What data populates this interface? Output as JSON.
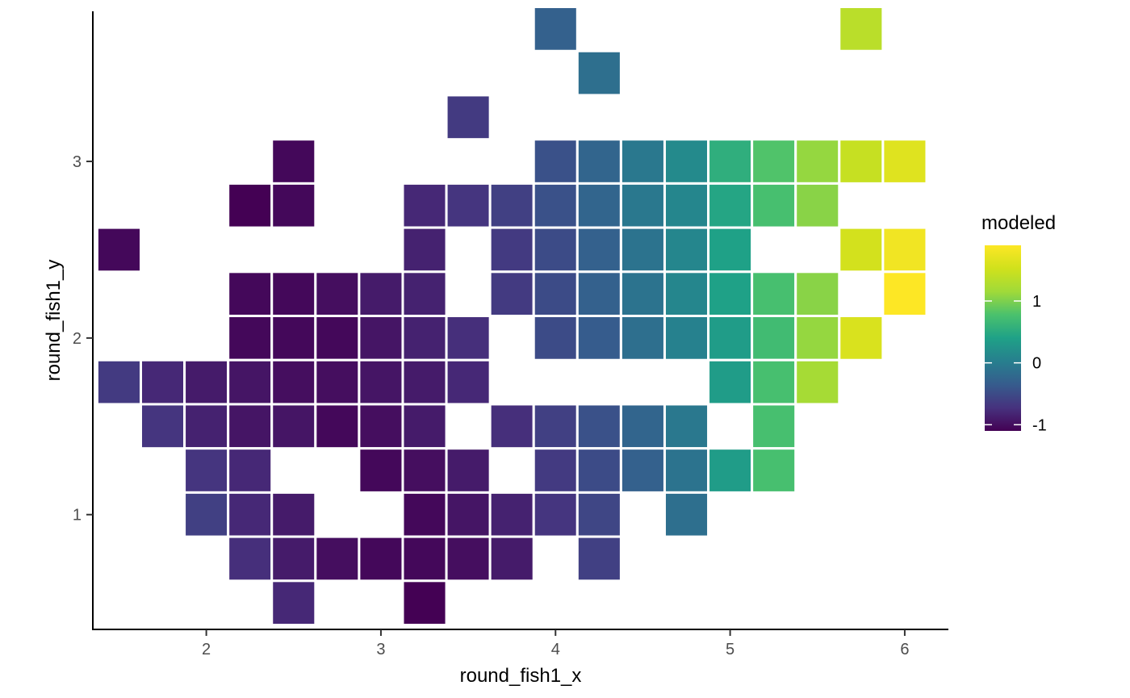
{
  "chart_data": {
    "type": "heatmap",
    "title": "",
    "xlabel": "round_fish1_x",
    "ylabel": "round_fish1_y",
    "xlim": [
      1.35,
      6.25
    ],
    "ylim": [
      0.35,
      3.85
    ],
    "x_ticks": [
      2,
      3,
      4,
      5,
      6
    ],
    "y_ticks": [
      1,
      2,
      3
    ],
    "grid": false,
    "tile_width": 0.25,
    "tile_height": 0.25,
    "legend": {
      "title": "modeled",
      "position": "right",
      "min": -1.1,
      "max": 1.9,
      "ticks": [
        -1,
        0,
        1
      ]
    },
    "color_scale": "viridis",
    "tiles": [
      {
        "x": 4.0,
        "y": 3.75,
        "value": -0.3
      },
      {
        "x": 5.75,
        "y": 3.75,
        "value": 1.35
      },
      {
        "x": 4.25,
        "y": 3.5,
        "value": -0.15
      },
      {
        "x": 3.5,
        "y": 3.25,
        "value": -0.65
      },
      {
        "x": 2.5,
        "y": 3.0,
        "value": -1.05
      },
      {
        "x": 4.0,
        "y": 3.0,
        "value": -0.45
      },
      {
        "x": 4.25,
        "y": 3.0,
        "value": -0.25
      },
      {
        "x": 4.5,
        "y": 3.0,
        "value": -0.05
      },
      {
        "x": 4.75,
        "y": 3.0,
        "value": 0.15
      },
      {
        "x": 5.0,
        "y": 3.0,
        "value": 0.55
      },
      {
        "x": 5.25,
        "y": 3.0,
        "value": 0.8
      },
      {
        "x": 5.5,
        "y": 3.0,
        "value": 1.1
      },
      {
        "x": 5.75,
        "y": 3.0,
        "value": 1.45
      },
      {
        "x": 6.0,
        "y": 3.0,
        "value": 1.65
      },
      {
        "x": 2.25,
        "y": 2.75,
        "value": -1.1
      },
      {
        "x": 2.5,
        "y": 2.75,
        "value": -1.05
      },
      {
        "x": 3.25,
        "y": 2.75,
        "value": -0.8
      },
      {
        "x": 3.5,
        "y": 2.75,
        "value": -0.7
      },
      {
        "x": 3.75,
        "y": 2.75,
        "value": -0.6
      },
      {
        "x": 4.0,
        "y": 2.75,
        "value": -0.45
      },
      {
        "x": 4.25,
        "y": 2.75,
        "value": -0.25
      },
      {
        "x": 4.5,
        "y": 2.75,
        "value": -0.05
      },
      {
        "x": 4.75,
        "y": 2.75,
        "value": 0.1
      },
      {
        "x": 5.0,
        "y": 2.75,
        "value": 0.45
      },
      {
        "x": 5.25,
        "y": 2.75,
        "value": 0.75
      },
      {
        "x": 5.5,
        "y": 2.75,
        "value": 1.05
      },
      {
        "x": 1.5,
        "y": 2.5,
        "value": -1.05
      },
      {
        "x": 3.25,
        "y": 2.5,
        "value": -0.85
      },
      {
        "x": 3.75,
        "y": 2.5,
        "value": -0.65
      },
      {
        "x": 4.0,
        "y": 2.5,
        "value": -0.5
      },
      {
        "x": 4.25,
        "y": 2.5,
        "value": -0.3
      },
      {
        "x": 4.5,
        "y": 2.5,
        "value": -0.1
      },
      {
        "x": 4.75,
        "y": 2.5,
        "value": 0.1
      },
      {
        "x": 5.0,
        "y": 2.5,
        "value": 0.4
      },
      {
        "x": 5.75,
        "y": 2.5,
        "value": 1.55
      },
      {
        "x": 6.0,
        "y": 2.5,
        "value": 1.8
      },
      {
        "x": 2.25,
        "y": 2.25,
        "value": -1.05
      },
      {
        "x": 2.5,
        "y": 2.25,
        "value": -1.05
      },
      {
        "x": 2.75,
        "y": 2.25,
        "value": -1.0
      },
      {
        "x": 3.0,
        "y": 2.25,
        "value": -0.9
      },
      {
        "x": 3.25,
        "y": 2.25,
        "value": -0.85
      },
      {
        "x": 3.75,
        "y": 2.25,
        "value": -0.65
      },
      {
        "x": 4.0,
        "y": 2.25,
        "value": -0.5
      },
      {
        "x": 4.25,
        "y": 2.25,
        "value": -0.3
      },
      {
        "x": 4.5,
        "y": 2.25,
        "value": -0.1
      },
      {
        "x": 4.75,
        "y": 2.25,
        "value": 0.1
      },
      {
        "x": 5.0,
        "y": 2.25,
        "value": 0.4
      },
      {
        "x": 5.25,
        "y": 2.25,
        "value": 0.75
      },
      {
        "x": 5.5,
        "y": 2.25,
        "value": 1.05
      },
      {
        "x": 6.0,
        "y": 2.25,
        "value": 1.9
      },
      {
        "x": 2.25,
        "y": 2.0,
        "value": -1.05
      },
      {
        "x": 2.5,
        "y": 2.0,
        "value": -1.05
      },
      {
        "x": 2.75,
        "y": 2.0,
        "value": -1.05
      },
      {
        "x": 3.0,
        "y": 2.0,
        "value": -0.95
      },
      {
        "x": 3.25,
        "y": 2.0,
        "value": -0.85
      },
      {
        "x": 3.5,
        "y": 2.0,
        "value": -0.75
      },
      {
        "x": 4.0,
        "y": 2.0,
        "value": -0.5
      },
      {
        "x": 4.25,
        "y": 2.0,
        "value": -0.35
      },
      {
        "x": 4.5,
        "y": 2.0,
        "value": -0.15
      },
      {
        "x": 4.75,
        "y": 2.0,
        "value": 0.05
      },
      {
        "x": 5.0,
        "y": 2.0,
        "value": 0.35
      },
      {
        "x": 5.25,
        "y": 2.0,
        "value": 0.7
      },
      {
        "x": 5.5,
        "y": 2.0,
        "value": 1.1
      },
      {
        "x": 5.75,
        "y": 2.0,
        "value": 1.6
      },
      {
        "x": 1.5,
        "y": 1.75,
        "value": -0.65
      },
      {
        "x": 1.75,
        "y": 1.75,
        "value": -0.8
      },
      {
        "x": 2.0,
        "y": 1.75,
        "value": -0.9
      },
      {
        "x": 2.25,
        "y": 1.75,
        "value": -0.95
      },
      {
        "x": 2.5,
        "y": 1.75,
        "value": -1.0
      },
      {
        "x": 2.75,
        "y": 1.75,
        "value": -1.0
      },
      {
        "x": 3.0,
        "y": 1.75,
        "value": -0.95
      },
      {
        "x": 3.25,
        "y": 1.75,
        "value": -0.9
      },
      {
        "x": 3.5,
        "y": 1.75,
        "value": -0.8
      },
      {
        "x": 5.0,
        "y": 1.75,
        "value": 0.35
      },
      {
        "x": 5.25,
        "y": 1.75,
        "value": 0.75
      },
      {
        "x": 5.5,
        "y": 1.75,
        "value": 1.2
      },
      {
        "x": 1.75,
        "y": 1.5,
        "value": -0.7
      },
      {
        "x": 2.0,
        "y": 1.5,
        "value": -0.85
      },
      {
        "x": 2.25,
        "y": 1.5,
        "value": -0.95
      },
      {
        "x": 2.5,
        "y": 1.5,
        "value": -0.95
      },
      {
        "x": 2.75,
        "y": 1.5,
        "value": -1.05
      },
      {
        "x": 3.0,
        "y": 1.5,
        "value": -1.0
      },
      {
        "x": 3.25,
        "y": 1.5,
        "value": -0.9
      },
      {
        "x": 3.75,
        "y": 1.5,
        "value": -0.75
      },
      {
        "x": 4.0,
        "y": 1.5,
        "value": -0.6
      },
      {
        "x": 4.25,
        "y": 1.5,
        "value": -0.45
      },
      {
        "x": 4.5,
        "y": 1.5,
        "value": -0.25
      },
      {
        "x": 4.75,
        "y": 1.5,
        "value": -0.05
      },
      {
        "x": 5.25,
        "y": 1.5,
        "value": 0.75
      },
      {
        "x": 2.0,
        "y": 1.25,
        "value": -0.7
      },
      {
        "x": 2.25,
        "y": 1.25,
        "value": -0.8
      },
      {
        "x": 3.0,
        "y": 1.25,
        "value": -1.05
      },
      {
        "x": 3.25,
        "y": 1.25,
        "value": -1.0
      },
      {
        "x": 3.5,
        "y": 1.25,
        "value": -0.9
      },
      {
        "x": 4.0,
        "y": 1.25,
        "value": -0.65
      },
      {
        "x": 4.25,
        "y": 1.25,
        "value": -0.5
      },
      {
        "x": 4.5,
        "y": 1.25,
        "value": -0.3
      },
      {
        "x": 4.75,
        "y": 1.25,
        "value": -0.1
      },
      {
        "x": 5.0,
        "y": 1.25,
        "value": 0.35
      },
      {
        "x": 5.25,
        "y": 1.25,
        "value": 0.75
      },
      {
        "x": 2.0,
        "y": 1.0,
        "value": -0.6
      },
      {
        "x": 2.25,
        "y": 1.0,
        "value": -0.8
      },
      {
        "x": 2.5,
        "y": 1.0,
        "value": -0.9
      },
      {
        "x": 3.25,
        "y": 1.0,
        "value": -1.05
      },
      {
        "x": 3.5,
        "y": 1.0,
        "value": -0.95
      },
      {
        "x": 3.75,
        "y": 1.0,
        "value": -0.85
      },
      {
        "x": 4.0,
        "y": 1.0,
        "value": -0.7
      },
      {
        "x": 4.25,
        "y": 1.0,
        "value": -0.55
      },
      {
        "x": 4.75,
        "y": 1.0,
        "value": -0.15
      },
      {
        "x": 2.25,
        "y": 0.75,
        "value": -0.75
      },
      {
        "x": 2.5,
        "y": 0.75,
        "value": -0.9
      },
      {
        "x": 2.75,
        "y": 0.75,
        "value": -1.0
      },
      {
        "x": 3.0,
        "y": 0.75,
        "value": -1.05
      },
      {
        "x": 3.25,
        "y": 0.75,
        "value": -1.05
      },
      {
        "x": 3.5,
        "y": 0.75,
        "value": -1.0
      },
      {
        "x": 3.75,
        "y": 0.75,
        "value": -0.9
      },
      {
        "x": 4.25,
        "y": 0.75,
        "value": -0.6
      },
      {
        "x": 2.5,
        "y": 0.5,
        "value": -0.8
      },
      {
        "x": 3.25,
        "y": 0.5,
        "value": -1.1
      }
    ]
  }
}
